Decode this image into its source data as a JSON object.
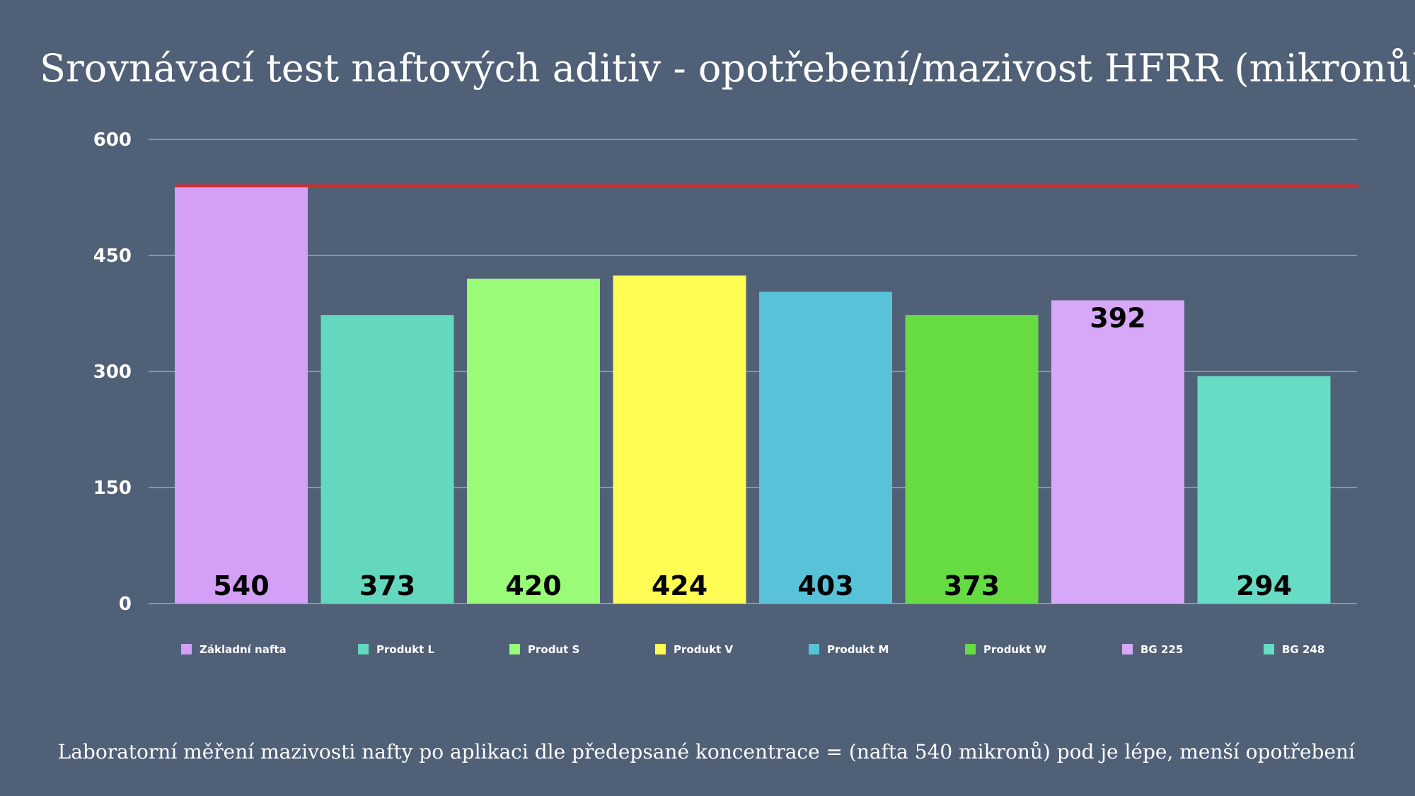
{
  "chart_data": {
    "type": "bar",
    "title": "Srovnávací test naftových aditiv - opotřebení/mazivost HFRR (mikronů)",
    "footnote": "Laboratorní měření mazivosti nafty po aplikaci dle předepsané koncentrace = (nafta 540 mikronů) pod je lépe, menší opotřebení",
    "categories": [
      "Základní nafta",
      "Produkt L",
      "Produt S",
      "Produkt V",
      "Produkt M",
      "Produkt W",
      "BG 225",
      "BG 248"
    ],
    "values": [
      540,
      373,
      420,
      424,
      403,
      373,
      392,
      294
    ],
    "data_labels": [
      "540",
      "373",
      "420",
      "424",
      "403",
      "373",
      "392",
      "294"
    ],
    "colors": [
      "#d49ff7",
      "#64d8bf",
      "#99fb77",
      "#fffc54",
      "#58c3d8",
      "#66db42",
      "#d8a8f8",
      "#66dcc4"
    ],
    "ylim": [
      0,
      600
    ],
    "yticks": [
      0,
      150,
      300,
      450,
      600
    ],
    "ytick_labels": [
      "0",
      "150",
      "300",
      "450",
      "600"
    ],
    "reference_line": {
      "value": 540,
      "color": "#d62a2a"
    },
    "grid": true,
    "legend_position": "bottom",
    "xlabel": "",
    "ylabel": ""
  }
}
